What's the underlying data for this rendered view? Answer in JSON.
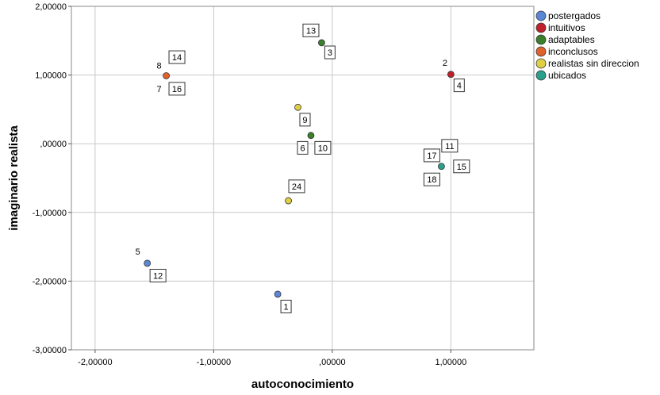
{
  "chart_data": {
    "type": "scatter",
    "xlabel": "autoconocimiento",
    "ylabel": "imaginario realista",
    "xlim": [
      -2.2,
      1.7
    ],
    "ylim": [
      -3.0,
      2.0
    ],
    "x_ticks": [
      {
        "value": -2,
        "label": "-2,00000"
      },
      {
        "value": -1,
        "label": "-1,00000"
      },
      {
        "value": 0,
        "label": ",00000"
      },
      {
        "value": 1,
        "label": "1,00000"
      }
    ],
    "y_ticks": [
      {
        "value": 2,
        "label": "2,00000"
      },
      {
        "value": 1,
        "label": "1,00000"
      },
      {
        "value": 0,
        "label": ",00000"
      },
      {
        "value": -1,
        "label": "-1,00000"
      },
      {
        "value": -2,
        "label": "-2,00000"
      },
      {
        "value": -3,
        "label": "-3,00000"
      }
    ],
    "grid": true,
    "legend_position": "top-right",
    "series": [
      {
        "name": "postergados",
        "color": "#5b87d6",
        "points": [
          [
            -1.56,
            -1.74
          ],
          [
            -0.46,
            -2.19
          ]
        ]
      },
      {
        "name": "intuitivos",
        "color": "#c0202a",
        "points": [
          [
            1.0,
            1.01
          ]
        ]
      },
      {
        "name": "adaptables",
        "color": "#3a7f2a",
        "points": [
          [
            -0.09,
            1.47
          ],
          [
            -0.18,
            0.12
          ]
        ]
      },
      {
        "name": "inconclusos",
        "color": "#e0612a",
        "points": [
          [
            -1.4,
            0.99
          ]
        ]
      },
      {
        "name": "realistas sin  direccion",
        "color": "#e0cf45",
        "points": [
          [
            -0.29,
            0.53
          ],
          [
            -0.37,
            -0.83
          ]
        ]
      },
      {
        "name": "ubicados",
        "color": "#2aa08c",
        "points": [
          [
            0.92,
            -0.33
          ]
        ]
      }
    ],
    "labels": [
      {
        "text": "13",
        "x": -0.18,
        "y": 1.65,
        "boxed": true
      },
      {
        "text": "3",
        "x": -0.02,
        "y": 1.33,
        "boxed": true
      },
      {
        "text": "14",
        "x": -1.31,
        "y": 1.26,
        "boxed": true
      },
      {
        "text": "8",
        "x": -1.46,
        "y": 1.14,
        "boxed": false
      },
      {
        "text": "7",
        "x": -1.46,
        "y": 0.8,
        "boxed": false
      },
      {
        "text": "16",
        "x": -1.31,
        "y": 0.8,
        "boxed": true
      },
      {
        "text": "2",
        "x": 0.95,
        "y": 1.18,
        "boxed": false
      },
      {
        "text": "4",
        "x": 1.07,
        "y": 0.85,
        "boxed": true
      },
      {
        "text": "9",
        "x": -0.23,
        "y": 0.35,
        "boxed": true
      },
      {
        "text": "6",
        "x": -0.25,
        "y": -0.06,
        "boxed": true
      },
      {
        "text": "10",
        "x": -0.08,
        "y": -0.06,
        "boxed": true
      },
      {
        "text": "11",
        "x": 0.99,
        "y": -0.03,
        "boxed": true
      },
      {
        "text": "17",
        "x": 0.84,
        "y": -0.17,
        "boxed": true
      },
      {
        "text": "15",
        "x": 1.09,
        "y": -0.33,
        "boxed": true
      },
      {
        "text": "18",
        "x": 0.84,
        "y": -0.52,
        "boxed": true
      },
      {
        "text": "24",
        "x": -0.3,
        "y": -0.62,
        "boxed": true
      },
      {
        "text": "5",
        "x": -1.64,
        "y": -1.57,
        "boxed": false
      },
      {
        "text": "12",
        "x": -1.47,
        "y": -1.92,
        "boxed": true
      },
      {
        "text": "1",
        "x": -0.39,
        "y": -2.37,
        "boxed": true
      }
    ]
  }
}
